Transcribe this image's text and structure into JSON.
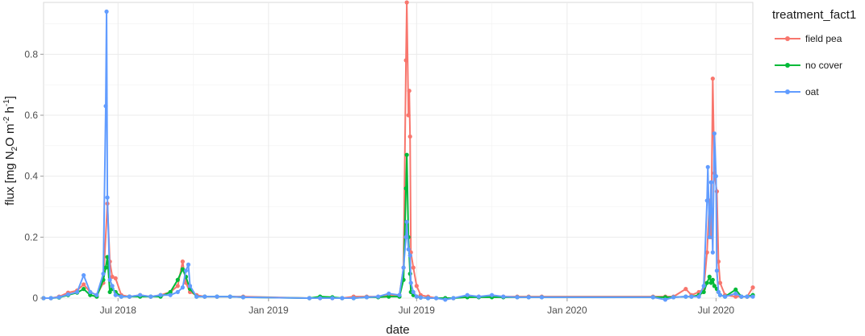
{
  "chart_data": {
    "type": "line",
    "title": "",
    "xlabel": "date",
    "ylabel_parts": [
      "flux [mg N",
      "2",
      "O m",
      "-2",
      " h",
      "-1",
      "]"
    ],
    "ylim": [
      0,
      0.97
    ],
    "xlim": [
      "2018-04-01",
      "2020-08-15"
    ],
    "y_ticks": [
      0,
      0.2,
      0.4,
      0.6,
      0.8
    ],
    "y_tick_labels": [
      "0",
      "0.2",
      "0.4",
      "0.6",
      "0.8"
    ],
    "x_ticks": [
      "2018-07-01",
      "2019-01-01",
      "2019-07-01",
      "2020-01-01",
      "2020-07-01"
    ],
    "x_tick_labels": [
      "Jul 2018",
      "Jan 2019",
      "Jul 2019",
      "Jan 2020",
      "Jul 2020"
    ],
    "grid": true,
    "legend": {
      "title": "treatment_fact1",
      "placement": "right"
    },
    "series": [
      {
        "name": "field pea",
        "color": "#F8766D",
        "points": [
          [
            "2018-04-01",
            0.0
          ],
          [
            "2018-04-10",
            0.0
          ],
          [
            "2018-04-20",
            0.005
          ],
          [
            "2018-05-01",
            0.018
          ],
          [
            "2018-05-12",
            0.025
          ],
          [
            "2018-05-20",
            0.045
          ],
          [
            "2018-05-28",
            0.02
          ],
          [
            "2018-06-05",
            0.01
          ],
          [
            "2018-06-13",
            0.05
          ],
          [
            "2018-06-18",
            0.31
          ],
          [
            "2018-06-21",
            0.12
          ],
          [
            "2018-06-24",
            0.07
          ],
          [
            "2018-06-28",
            0.065
          ],
          [
            "2018-07-05",
            0.01
          ],
          [
            "2018-07-15",
            0.005
          ],
          [
            "2018-07-28",
            0.01
          ],
          [
            "2018-08-10",
            0.005
          ],
          [
            "2018-08-22",
            0.01
          ],
          [
            "2018-09-03",
            0.02
          ],
          [
            "2018-09-12",
            0.04
          ],
          [
            "2018-09-18",
            0.12
          ],
          [
            "2018-09-22",
            0.05
          ],
          [
            "2018-09-27",
            0.02
          ],
          [
            "2018-10-05",
            0.01
          ],
          [
            "2018-10-15",
            0.005
          ],
          [
            "2018-10-30",
            0.005
          ],
          [
            "2018-11-15",
            0.005
          ],
          [
            "2018-12-01",
            0.005
          ],
          [
            "2019-02-20",
            0.0
          ],
          [
            "2019-03-05",
            0.0
          ],
          [
            "2019-03-20",
            0.0
          ],
          [
            "2019-04-01",
            0.0
          ],
          [
            "2019-04-15",
            0.005
          ],
          [
            "2019-05-01",
            0.005
          ],
          [
            "2019-05-15",
            0.005
          ],
          [
            "2019-05-28",
            0.01
          ],
          [
            "2019-06-10",
            0.01
          ],
          [
            "2019-06-15",
            0.1
          ],
          [
            "2019-06-18",
            0.78
          ],
          [
            "2019-06-19",
            0.97
          ],
          [
            "2019-06-21",
            0.6
          ],
          [
            "2019-06-22",
            0.68
          ],
          [
            "2019-06-23",
            0.53
          ],
          [
            "2019-06-24",
            0.15
          ],
          [
            "2019-06-27",
            0.1
          ],
          [
            "2019-07-01",
            0.04
          ],
          [
            "2019-07-06",
            0.01
          ],
          [
            "2019-07-15",
            0.005
          ],
          [
            "2019-07-25",
            0.0
          ],
          [
            "2019-08-05",
            0.0
          ],
          [
            "2019-08-15",
            0.0
          ],
          [
            "2019-09-01",
            0.005
          ],
          [
            "2019-09-15",
            0.005
          ],
          [
            "2019-10-01",
            0.005
          ],
          [
            "2019-10-15",
            0.005
          ],
          [
            "2019-11-01",
            0.005
          ],
          [
            "2019-11-15",
            0.005
          ],
          [
            "2019-12-01",
            0.005
          ],
          [
            "2020-04-15",
            0.005
          ],
          [
            "2020-04-30",
            0.005
          ],
          [
            "2020-05-10",
            0.005
          ],
          [
            "2020-05-25",
            0.03
          ],
          [
            "2020-06-01",
            0.01
          ],
          [
            "2020-06-10",
            0.02
          ],
          [
            "2020-06-16",
            0.03
          ],
          [
            "2020-06-20",
            0.15
          ],
          [
            "2020-06-23",
            0.32
          ],
          [
            "2020-06-25",
            0.2
          ],
          [
            "2020-06-27",
            0.72
          ],
          [
            "2020-06-29",
            0.41
          ],
          [
            "2020-07-02",
            0.35
          ],
          [
            "2020-07-04",
            0.12
          ],
          [
            "2020-07-06",
            0.05
          ],
          [
            "2020-07-12",
            0.01
          ],
          [
            "2020-07-25",
            0.005
          ],
          [
            "2020-08-01",
            0.005
          ],
          [
            "2020-08-08",
            0.005
          ],
          [
            "2020-08-15",
            0.035
          ]
        ]
      },
      {
        "name": "no cover",
        "color": "#00BA38",
        "points": [
          [
            "2018-04-01",
            0.0
          ],
          [
            "2018-04-10",
            0.0
          ],
          [
            "2018-04-20",
            0.002
          ],
          [
            "2018-05-01",
            0.01
          ],
          [
            "2018-05-12",
            0.018
          ],
          [
            "2018-05-20",
            0.03
          ],
          [
            "2018-05-28",
            0.01
          ],
          [
            "2018-06-05",
            0.005
          ],
          [
            "2018-06-13",
            0.06
          ],
          [
            "2018-06-16",
            0.1
          ],
          [
            "2018-06-18",
            0.135
          ],
          [
            "2018-06-21",
            0.02
          ],
          [
            "2018-06-24",
            0.03
          ],
          [
            "2018-06-28",
            0.02
          ],
          [
            "2018-07-05",
            0.005
          ],
          [
            "2018-07-15",
            0.005
          ],
          [
            "2018-07-28",
            0.005
          ],
          [
            "2018-08-10",
            0.005
          ],
          [
            "2018-08-22",
            0.005
          ],
          [
            "2018-09-03",
            0.02
          ],
          [
            "2018-09-12",
            0.06
          ],
          [
            "2018-09-18",
            0.095
          ],
          [
            "2018-09-22",
            0.07
          ],
          [
            "2018-09-27",
            0.03
          ],
          [
            "2018-10-05",
            0.005
          ],
          [
            "2018-10-15",
            0.005
          ],
          [
            "2018-10-30",
            0.005
          ],
          [
            "2018-11-15",
            0.005
          ],
          [
            "2018-12-01",
            0.003
          ],
          [
            "2019-02-20",
            0.0
          ],
          [
            "2019-03-05",
            0.005
          ],
          [
            "2019-03-20",
            0.003
          ],
          [
            "2019-04-01",
            0.0
          ],
          [
            "2019-04-15",
            0.0
          ],
          [
            "2019-05-01",
            0.003
          ],
          [
            "2019-05-15",
            0.003
          ],
          [
            "2019-05-28",
            0.005
          ],
          [
            "2019-06-10",
            0.005
          ],
          [
            "2019-06-15",
            0.06
          ],
          [
            "2019-06-18",
            0.36
          ],
          [
            "2019-06-19",
            0.47
          ],
          [
            "2019-06-21",
            0.2
          ],
          [
            "2019-06-23",
            0.08
          ],
          [
            "2019-06-24",
            0.02
          ],
          [
            "2019-06-27",
            0.01
          ],
          [
            "2019-07-01",
            0.005
          ],
          [
            "2019-07-06",
            0.002
          ],
          [
            "2019-07-15",
            0.0
          ],
          [
            "2019-07-25",
            0.0
          ],
          [
            "2019-08-05",
            0.0
          ],
          [
            "2019-08-15",
            0.0
          ],
          [
            "2019-09-01",
            0.003
          ],
          [
            "2019-09-15",
            0.003
          ],
          [
            "2019-10-01",
            0.003
          ],
          [
            "2019-10-15",
            0.003
          ],
          [
            "2019-11-01",
            0.003
          ],
          [
            "2019-11-15",
            0.003
          ],
          [
            "2019-12-01",
            0.003
          ],
          [
            "2020-04-15",
            0.003
          ],
          [
            "2020-04-30",
            0.003
          ],
          [
            "2020-05-10",
            0.003
          ],
          [
            "2020-05-25",
            0.005
          ],
          [
            "2020-06-01",
            0.005
          ],
          [
            "2020-06-10",
            0.01
          ],
          [
            "2020-06-16",
            0.02
          ],
          [
            "2020-06-20",
            0.05
          ],
          [
            "2020-06-23",
            0.07
          ],
          [
            "2020-06-25",
            0.05
          ],
          [
            "2020-06-27",
            0.06
          ],
          [
            "2020-06-29",
            0.04
          ],
          [
            "2020-07-02",
            0.03
          ],
          [
            "2020-07-04",
            0.02
          ],
          [
            "2020-07-06",
            0.01
          ],
          [
            "2020-07-12",
            0.005
          ],
          [
            "2020-07-25",
            0.028
          ],
          [
            "2020-08-01",
            0.005
          ],
          [
            "2020-08-08",
            0.005
          ],
          [
            "2020-08-15",
            0.01
          ]
        ]
      },
      {
        "name": "oat",
        "color": "#619CFF",
        "points": [
          [
            "2018-04-01",
            0.0
          ],
          [
            "2018-04-10",
            0.0
          ],
          [
            "2018-04-20",
            0.003
          ],
          [
            "2018-05-01",
            0.012
          ],
          [
            "2018-05-12",
            0.02
          ],
          [
            "2018-05-20",
            0.075
          ],
          [
            "2018-05-28",
            0.02
          ],
          [
            "2018-06-05",
            0.01
          ],
          [
            "2018-06-13",
            0.08
          ],
          [
            "2018-06-16",
            0.63
          ],
          [
            "2018-06-17",
            0.94
          ],
          [
            "2018-06-18",
            0.33
          ],
          [
            "2018-06-21",
            0.06
          ],
          [
            "2018-06-24",
            0.04
          ],
          [
            "2018-06-28",
            0.01
          ],
          [
            "2018-07-05",
            0.005
          ],
          [
            "2018-07-15",
            0.005
          ],
          [
            "2018-07-28",
            0.01
          ],
          [
            "2018-08-10",
            0.005
          ],
          [
            "2018-08-22",
            0.01
          ],
          [
            "2018-09-03",
            0.01
          ],
          [
            "2018-09-12",
            0.02
          ],
          [
            "2018-09-18",
            0.035
          ],
          [
            "2018-09-22",
            0.09
          ],
          [
            "2018-09-25",
            0.11
          ],
          [
            "2018-09-27",
            0.04
          ],
          [
            "2018-10-05",
            0.005
          ],
          [
            "2018-10-15",
            0.005
          ],
          [
            "2018-10-30",
            0.005
          ],
          [
            "2018-11-15",
            0.005
          ],
          [
            "2018-12-01",
            0.003
          ],
          [
            "2019-02-20",
            0.0
          ],
          [
            "2019-03-05",
            0.0
          ],
          [
            "2019-03-20",
            0.0
          ],
          [
            "2019-04-01",
            0.0
          ],
          [
            "2019-04-15",
            0.0
          ],
          [
            "2019-05-01",
            0.003
          ],
          [
            "2019-05-15",
            0.005
          ],
          [
            "2019-05-28",
            0.015
          ],
          [
            "2019-06-10",
            0.01
          ],
          [
            "2019-06-15",
            0.1
          ],
          [
            "2019-06-18",
            0.2
          ],
          [
            "2019-06-19",
            0.25
          ],
          [
            "2019-06-21",
            0.16
          ],
          [
            "2019-06-23",
            0.14
          ],
          [
            "2019-06-24",
            0.05
          ],
          [
            "2019-06-27",
            0.02
          ],
          [
            "2019-07-01",
            0.005
          ],
          [
            "2019-07-06",
            0.002
          ],
          [
            "2019-07-15",
            0.0
          ],
          [
            "2019-07-25",
            0.0
          ],
          [
            "2019-08-05",
            -0.005
          ],
          [
            "2019-08-15",
            0.0
          ],
          [
            "2019-09-01",
            0.01
          ],
          [
            "2019-09-15",
            0.005
          ],
          [
            "2019-10-01",
            0.01
          ],
          [
            "2019-10-15",
            0.005
          ],
          [
            "2019-11-01",
            0.003
          ],
          [
            "2019-11-15",
            0.003
          ],
          [
            "2019-12-01",
            0.003
          ],
          [
            "2020-04-15",
            0.003
          ],
          [
            "2020-04-30",
            -0.005
          ],
          [
            "2020-05-10",
            0.003
          ],
          [
            "2020-05-25",
            0.005
          ],
          [
            "2020-06-01",
            0.005
          ],
          [
            "2020-06-10",
            0.005
          ],
          [
            "2020-06-16",
            0.04
          ],
          [
            "2020-06-20",
            0.32
          ],
          [
            "2020-06-21",
            0.43
          ],
          [
            "2020-06-23",
            0.2
          ],
          [
            "2020-06-25",
            0.38
          ],
          [
            "2020-06-27",
            0.15
          ],
          [
            "2020-06-29",
            0.54
          ],
          [
            "2020-07-01",
            0.4
          ],
          [
            "2020-07-02",
            0.09
          ],
          [
            "2020-07-04",
            0.02
          ],
          [
            "2020-07-06",
            0.01
          ],
          [
            "2020-07-12",
            0.005
          ],
          [
            "2020-07-25",
            0.015
          ],
          [
            "2020-08-01",
            0.005
          ],
          [
            "2020-08-08",
            0.005
          ],
          [
            "2020-08-15",
            0.005
          ]
        ]
      }
    ]
  }
}
